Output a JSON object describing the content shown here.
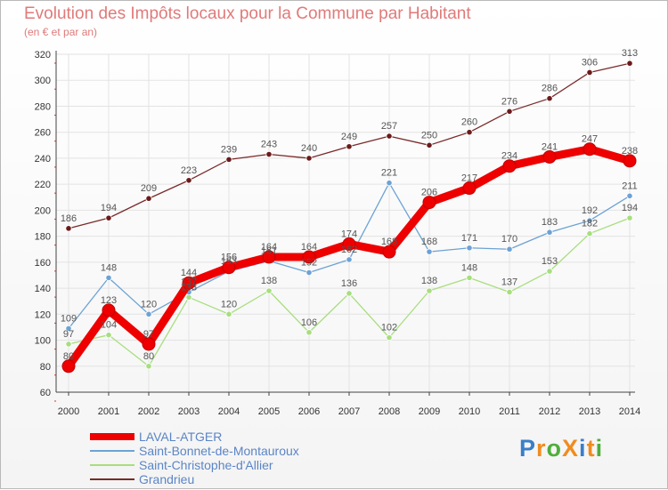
{
  "title": "Evolution des Impôts locaux pour la Commune par Habitant",
  "subtitle": "(en € et par an)",
  "brand": {
    "text": "ProXiti",
    "letters": [
      "P",
      "r",
      "o",
      "X",
      "i",
      "t",
      "i"
    ],
    "colors": [
      "#3a7fc8",
      "#f08c1e",
      "#4fae3c",
      "#f08c1e",
      "#3a7fc8",
      "#f08c1e",
      "#4fae3c"
    ]
  },
  "chart_data": {
    "type": "line",
    "x": [
      "2000",
      "2001",
      "2002",
      "2003",
      "2004",
      "2005",
      "2006",
      "2007",
      "2008",
      "2009",
      "2010",
      "2011",
      "2012",
      "2013",
      "2014"
    ],
    "ylim": [
      60,
      320
    ],
    "yticks": [
      60,
      80,
      100,
      120,
      140,
      160,
      180,
      200,
      220,
      240,
      260,
      280,
      300,
      320
    ],
    "grid": true,
    "legend": "bottom-left",
    "series": [
      {
        "name": "LAVAL-ATGER",
        "color": "#ee0000",
        "width": "thick",
        "values": [
          80,
          123,
          97,
          144,
          156,
          164,
          164,
          174,
          168,
          206,
          217,
          234,
          241,
          247,
          238
        ]
      },
      {
        "name": "Saint-Bonnet-de-Montauroux",
        "color": "#6da2d4",
        "width": "thin",
        "values": [
          109,
          148,
          120,
          137,
          153,
          161,
          152,
          162,
          221,
          168,
          171,
          170,
          183,
          192,
          211
        ]
      },
      {
        "name": "Saint-Christophe-d'Allier",
        "color": "#a8de7e",
        "width": "thin",
        "values": [
          97,
          104,
          80,
          133,
          120,
          138,
          106,
          136,
          102,
          138,
          148,
          137,
          153,
          182,
          194
        ]
      },
      {
        "name": "Grandrieu",
        "color": "#7a2a2a",
        "width": "thin",
        "values": [
          186,
          194,
          209,
          223,
          239,
          243,
          240,
          249,
          257,
          250,
          260,
          276,
          286,
          306,
          313
        ]
      }
    ]
  }
}
